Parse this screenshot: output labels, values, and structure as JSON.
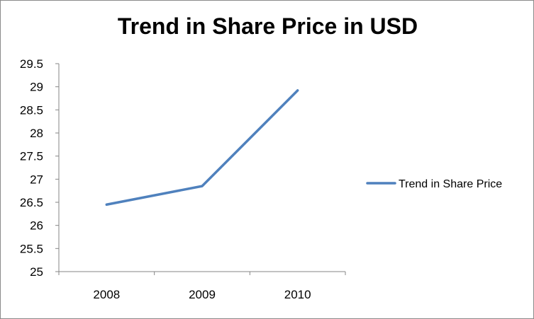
{
  "chart_data": {
    "type": "line",
    "title": "Trend in Share Price in USD",
    "categories": [
      "2008",
      "2009",
      "2010"
    ],
    "series": [
      {
        "name": "Trend in Share Price",
        "values": [
          26.45,
          26.85,
          28.92
        ],
        "color": "#4f81bd"
      }
    ],
    "ylim": [
      25,
      29.5
    ],
    "yticks": [
      "25",
      "25.5",
      "26",
      "26.5",
      "27",
      "27.5",
      "28",
      "28.5",
      "29",
      "29.5"
    ],
    "xlabel": "",
    "ylabel": "",
    "grid": false,
    "legend_position": "right"
  }
}
